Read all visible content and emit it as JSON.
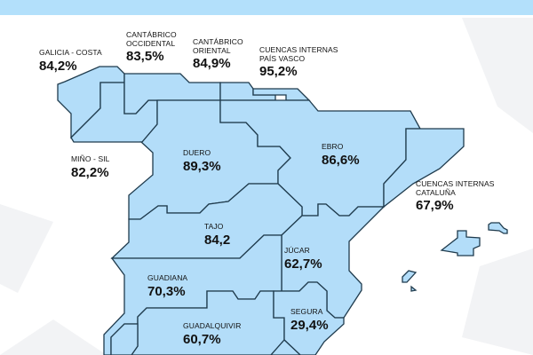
{
  "title_bar": "",
  "colors": {
    "region_fill": "#b3ddf9",
    "border": "#1f3b4d",
    "top_bar": "#b3e0fb"
  },
  "basins": [
    {
      "id": "galicia-costa",
      "name": "GALICIA - COSTA",
      "value": "84,2%"
    },
    {
      "id": "cantabrico-occidental",
      "name": "CANTÁBRICO\nOCCIDENTAL",
      "value": "83,5%"
    },
    {
      "id": "cantabrico-oriental",
      "name": "CANTÁBRICO\nORIENTAL",
      "value": "84,9%"
    },
    {
      "id": "pais-vasco",
      "name": "CUENCAS INTERNAS\nPAÍS VASCO",
      "value": "95,2%"
    },
    {
      "id": "mino-sil",
      "name": "MIÑO - SIL",
      "value": "82,2%"
    },
    {
      "id": "duero",
      "name": "DUERO",
      "value": "89,3%"
    },
    {
      "id": "ebro",
      "name": "EBRO",
      "value": "86,6%"
    },
    {
      "id": "cataluna",
      "name": "CUENCAS INTERNAS\nCATALUÑA",
      "value": "67,9%"
    },
    {
      "id": "tajo",
      "name": "TAJO",
      "value": "84,2"
    },
    {
      "id": "jucar",
      "name": "JÚCAR",
      "value": "62,7%"
    },
    {
      "id": "guadiana",
      "name": "GUADIANA",
      "value": "70,3%"
    },
    {
      "id": "guadalquivir",
      "name": "GUADALQUIVIR",
      "value": "60,7%"
    },
    {
      "id": "segura",
      "name": "SEGURA",
      "value": "29,4%"
    }
  ]
}
